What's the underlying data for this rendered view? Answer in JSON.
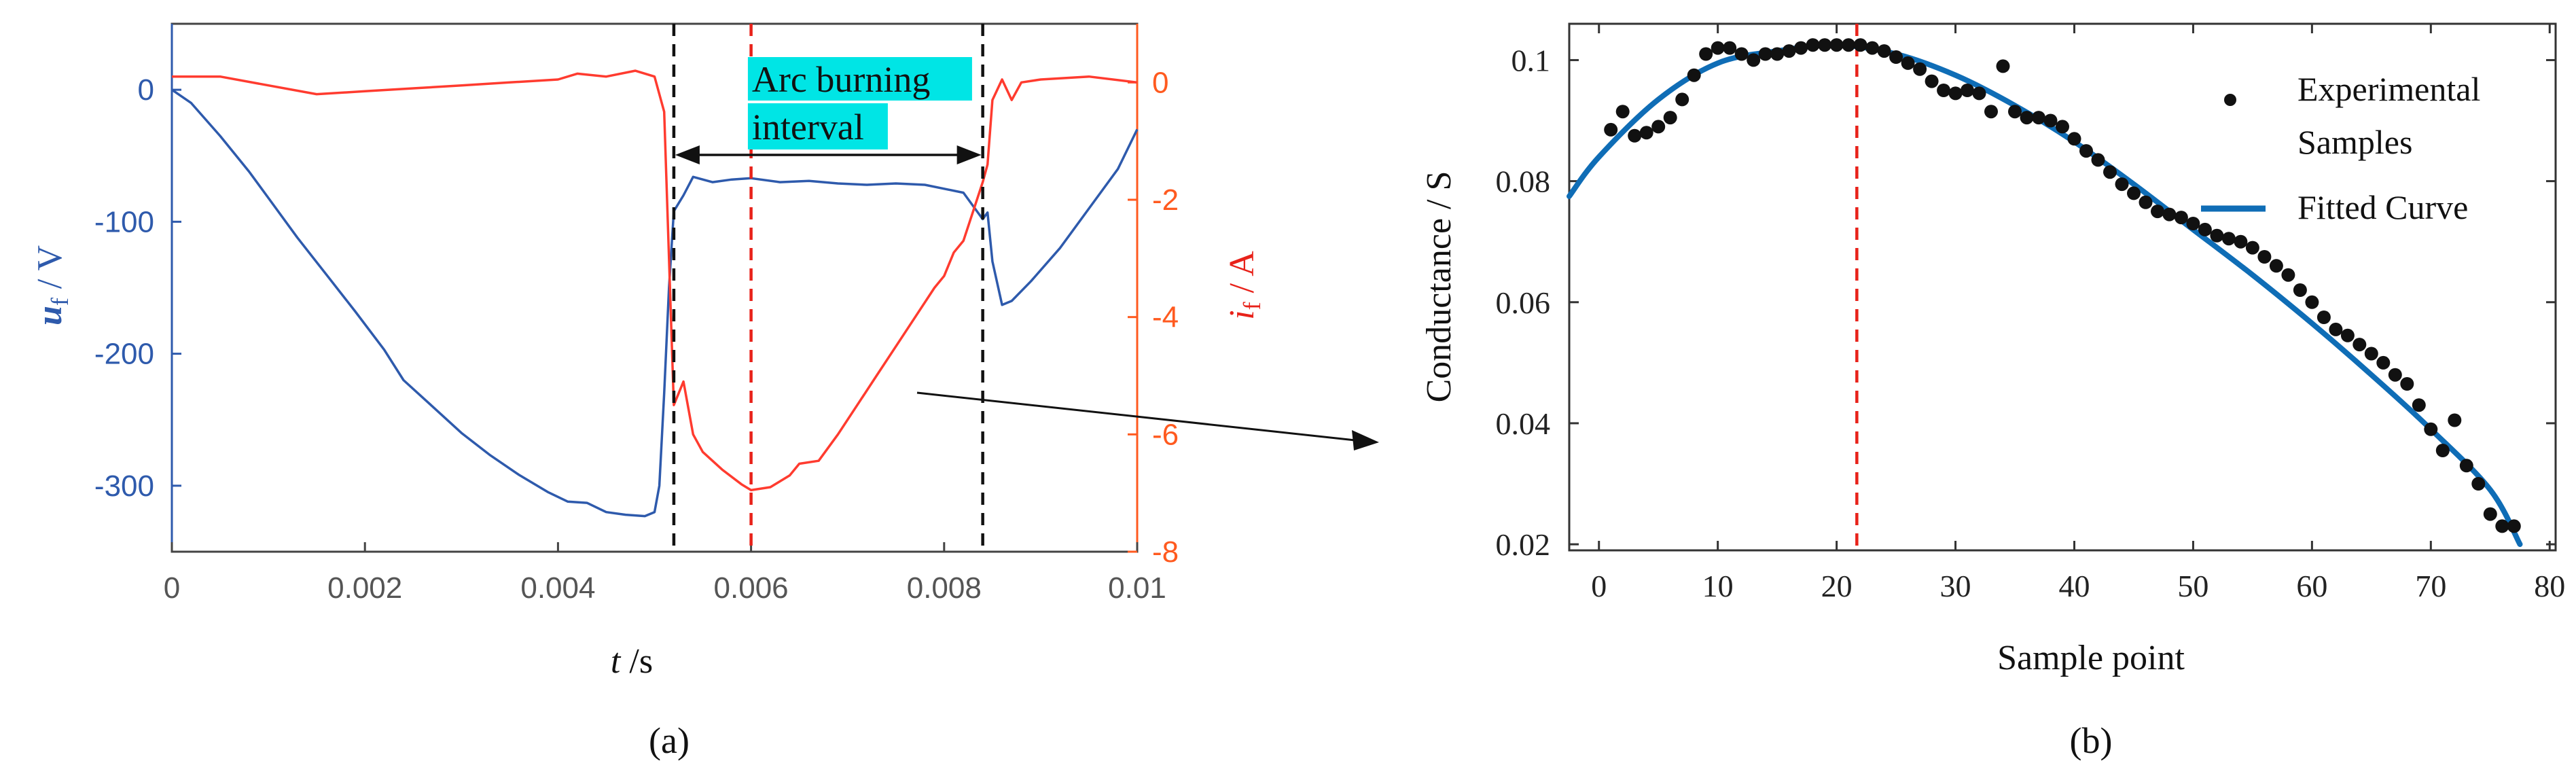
{
  "colors": {
    "voltage": "#2e5aac",
    "current": "#ff3b2f",
    "current_axis": "#ff5a1f",
    "axis_dark": "#444444",
    "fit": "#0f6db6",
    "samples": "#111111",
    "marker_red": "#e8221a",
    "highlight": "#00e5e5"
  },
  "chart_data": [
    {
      "type": "line",
      "panel_label": "(a)",
      "xlabel_main": "t",
      "xlabel_unit": " /s",
      "ylabel_left_main": "u",
      "ylabel_left_sub": "f",
      "ylabel_left_unit": " / V",
      "ylabel_right_main": "i",
      "ylabel_right_sub": "f",
      "ylabel_right_unit": " / A",
      "xlim": [
        0,
        0.01
      ],
      "ylim_left": [
        -350,
        50
      ],
      "ylim_right": [
        -8,
        1
      ],
      "xticks": [
        0,
        0.002,
        0.004,
        0.006,
        0.008,
        0.01
      ],
      "xtick_labels": [
        "0",
        "0.002",
        "0.004",
        "0.006",
        "0.008",
        "0.01"
      ],
      "yticks_left": [
        0,
        -100,
        -200,
        -300
      ],
      "ytick_labels_left": [
        "0",
        "-100",
        "-200",
        "-300"
      ],
      "yticks_right": [
        0,
        -2,
        -4,
        -6,
        -8
      ],
      "ytick_labels_right": [
        "0",
        "-2",
        "-4",
        "-6",
        "-8"
      ],
      "annotation": {
        "line1": "Arc burning",
        "line2": "interval",
        "x_start": 0.0052,
        "x_end": 0.0084
      },
      "vlines_black": [
        0.0052,
        0.0084
      ],
      "vline_red": 0.006,
      "series": [
        {
          "name": "u_f",
          "axis": "left",
          "x": [
            0,
            0.0002,
            0.0005,
            0.0008,
            0.001,
            0.0013,
            0.0016,
            0.0019,
            0.0022,
            0.0024,
            0.0027,
            0.003,
            0.0033,
            0.0036,
            0.0039,
            0.0041,
            0.0043,
            0.0045,
            0.0047,
            0.0049,
            0.005,
            0.00505,
            0.0051,
            0.00515,
            0.0052,
            0.0053,
            0.0054,
            0.0056,
            0.0058,
            0.006,
            0.0063,
            0.0066,
            0.0069,
            0.0072,
            0.0075,
            0.0078,
            0.008,
            0.0082,
            0.0083,
            0.0084,
            0.00845,
            0.0085,
            0.0086,
            0.0087,
            0.0089,
            0.0092,
            0.0095,
            0.0098,
            0.01
          ],
          "y": [
            0,
            -10,
            -35,
            -62,
            -82,
            -112,
            -140,
            -168,
            -197,
            -220,
            -240,
            -260,
            -277,
            -292,
            -305,
            -312,
            -313,
            -320,
            -322,
            -323,
            -320,
            -300,
            -230,
            -150,
            -92,
            -80,
            -66,
            -70,
            -68,
            -67,
            -70,
            -69,
            -71,
            -72,
            -71,
            -72,
            -75,
            -78,
            -88,
            -98,
            -93,
            -130,
            -163,
            -160,
            -145,
            -120,
            -90,
            -60,
            -30
          ]
        },
        {
          "name": "i_f",
          "axis": "right",
          "x": [
            0,
            0.0005,
            0.001,
            0.0015,
            0.002,
            0.0025,
            0.003,
            0.0035,
            0.004,
            0.0042,
            0.0045,
            0.0048,
            0.005,
            0.0051,
            0.00515,
            0.0052,
            0.0053,
            0.0054,
            0.0055,
            0.0057,
            0.0059,
            0.006,
            0.0062,
            0.0064,
            0.0065,
            0.0067,
            0.0069,
            0.0071,
            0.0073,
            0.0075,
            0.0077,
            0.0079,
            0.008,
            0.0081,
            0.0082,
            0.0083,
            0.0084,
            0.00845,
            0.0085,
            0.0086,
            0.0087,
            0.0088,
            0.009,
            0.0095,
            0.01
          ],
          "y": [
            0.1,
            0.1,
            -0.05,
            -0.2,
            -0.15,
            -0.1,
            -0.05,
            0.0,
            0.05,
            0.15,
            0.1,
            0.2,
            0.1,
            -0.5,
            -3.0,
            -5.5,
            -5.1,
            -6.0,
            -6.3,
            -6.6,
            -6.85,
            -6.95,
            -6.9,
            -6.7,
            -6.5,
            -6.45,
            -6.0,
            -5.5,
            -5.0,
            -4.5,
            -4.0,
            -3.5,
            -3.3,
            -2.9,
            -2.7,
            -2.2,
            -1.7,
            -1.4,
            -0.3,
            0.05,
            -0.3,
            0.0,
            0.05,
            0.1,
            0.0
          ]
        }
      ]
    },
    {
      "type": "scatter",
      "panel_label": "(b)",
      "xlabel": "Sample point",
      "ylabel": "Conductance / S",
      "xlim": [
        -2.5,
        80.5
      ],
      "ylim": [
        0.019,
        0.106
      ],
      "xticks": [
        0,
        10,
        20,
        30,
        40,
        50,
        60,
        70,
        80
      ],
      "xtick_labels": [
        "0",
        "10",
        "20",
        "30",
        "40",
        "50",
        "60",
        "70",
        "80"
      ],
      "yticks": [
        0.1,
        0.08,
        0.06,
        0.04,
        0.02
      ],
      "ytick_labels": [
        "0.1",
        "0.08",
        "0.06",
        "0.04",
        "0.02"
      ],
      "vline_red": 21.7,
      "legend": {
        "samples_line1": "Experimental",
        "samples_line2": "Samples",
        "fit": "Fitted Curve"
      },
      "samples": {
        "x": [
          1,
          2,
          3,
          4,
          5,
          6,
          7,
          8,
          9,
          10,
          11,
          12,
          13,
          14,
          15,
          16,
          17,
          18,
          19,
          20,
          21,
          22,
          23,
          24,
          25,
          26,
          27,
          28,
          29,
          30,
          31,
          32,
          33,
          34,
          35,
          36,
          37,
          38,
          39,
          40,
          41,
          42,
          43,
          44,
          45,
          46,
          47,
          48,
          49,
          50,
          51,
          52,
          53,
          54,
          55,
          56,
          57,
          58,
          59,
          60,
          61,
          62,
          63,
          64,
          65,
          66,
          67,
          68,
          69,
          70,
          71,
          72,
          73,
          74,
          75,
          76,
          77
        ],
        "y": [
          0.0885,
          0.0915,
          0.0875,
          0.088,
          0.089,
          0.0905,
          0.0935,
          0.0975,
          0.101,
          0.102,
          0.102,
          0.101,
          0.1,
          0.101,
          0.101,
          0.1015,
          0.102,
          0.1025,
          0.1025,
          0.1025,
          0.1025,
          0.1025,
          0.102,
          0.1015,
          0.1005,
          0.0995,
          0.0985,
          0.0965,
          0.095,
          0.0945,
          0.095,
          0.0945,
          0.0915,
          0.099,
          0.0915,
          0.0905,
          0.0905,
          0.09,
          0.089,
          0.087,
          0.085,
          0.0835,
          0.0815,
          0.0795,
          0.078,
          0.0765,
          0.075,
          0.0745,
          0.074,
          0.073,
          0.072,
          0.071,
          0.0705,
          0.07,
          0.069,
          0.0675,
          0.066,
          0.0645,
          0.062,
          0.06,
          0.0575,
          0.0555,
          0.0545,
          0.053,
          0.0515,
          0.05,
          0.048,
          0.0465,
          0.043,
          0.039,
          0.0355,
          0.0405,
          0.033,
          0.03,
          0.025,
          0.023,
          0.023
        ]
      },
      "fit_curve": {
        "x": [
          -2.5,
          0,
          5,
          10,
          15,
          20,
          25,
          30,
          35,
          40,
          45,
          50,
          55,
          60,
          65,
          70,
          75,
          77.5
        ],
        "y": [
          0.0775,
          0.084,
          0.0935,
          0.0995,
          0.1015,
          0.1025,
          0.101,
          0.0975,
          0.0925,
          0.0865,
          0.0795,
          0.072,
          0.0645,
          0.0565,
          0.048,
          0.039,
          0.029,
          0.02
        ]
      }
    }
  ]
}
